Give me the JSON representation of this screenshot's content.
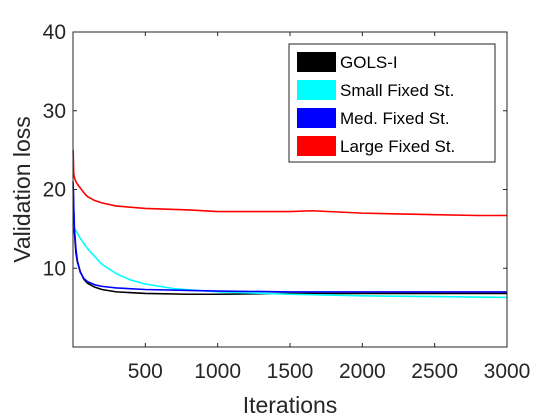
{
  "chart_data": {
    "type": "line",
    "xlabel": "Iterations",
    "ylabel": "Validation loss",
    "xlim": [
      0,
      3000
    ],
    "ylim": [
      0,
      40
    ],
    "xticks": [
      500,
      1000,
      1500,
      2000,
      2500,
      3000
    ],
    "yticks": [
      10,
      20,
      30,
      40
    ],
    "legend_position": "top-right",
    "series": [
      {
        "name": "GOLS-I",
        "color": "#000000",
        "x": [
          1,
          5,
          10,
          20,
          30,
          50,
          75,
          100,
          150,
          200,
          300,
          500,
          800,
          1000,
          1500,
          2000,
          2500,
          3000
        ],
        "y": [
          20.5,
          17,
          14.5,
          12,
          10.8,
          9.6,
          8.6,
          8.1,
          7.6,
          7.3,
          7.0,
          6.8,
          6.7,
          6.7,
          6.8,
          6.8,
          6.8,
          6.8
        ]
      },
      {
        "name": "Small Fixed St.",
        "color": "#00ffff",
        "x": [
          1,
          5,
          10,
          30,
          50,
          100,
          200,
          300,
          400,
          500,
          700,
          1000,
          1500,
          2000,
          2500,
          3000
        ],
        "y": [
          16,
          15.3,
          15.0,
          14.5,
          13.8,
          12.5,
          10.5,
          9.3,
          8.5,
          8.0,
          7.4,
          7.0,
          6.7,
          6.5,
          6.4,
          6.3
        ]
      },
      {
        "name": "Med. Fixed St.",
        "color": "#0000ff",
        "x": [
          1,
          5,
          10,
          20,
          30,
          50,
          75,
          100,
          150,
          200,
          300,
          500,
          1000,
          1500,
          2000,
          2500,
          3000
        ],
        "y": [
          21,
          18,
          15,
          12.5,
          11,
          9.5,
          8.7,
          8.3,
          7.9,
          7.7,
          7.5,
          7.3,
          7.1,
          7.0,
          7.0,
          7.0,
          7.0
        ]
      },
      {
        "name": "Large Fixed St.",
        "color": "#ff0000",
        "x": [
          1,
          5,
          10,
          20,
          30,
          50,
          75,
          100,
          150,
          200,
          300,
          500,
          800,
          1000,
          1500,
          1650,
          2000,
          2500,
          2800,
          3000
        ],
        "y": [
          25,
          22,
          21.5,
          21,
          20.7,
          20.2,
          19.6,
          19.1,
          18.6,
          18.3,
          17.9,
          17.6,
          17.4,
          17.2,
          17.2,
          17.3,
          17.0,
          16.8,
          16.7,
          16.7
        ]
      }
    ]
  }
}
